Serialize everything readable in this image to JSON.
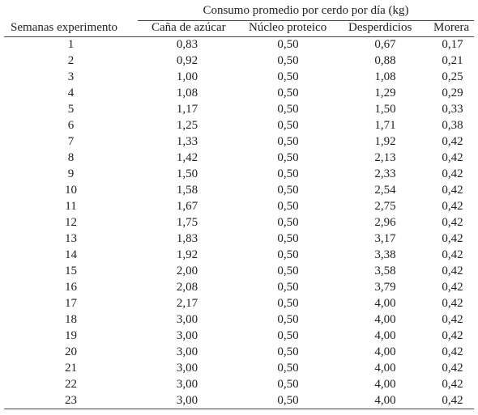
{
  "table": {
    "group_header": "Consumo promedio por cerdo por  día (kg)",
    "columns": [
      "Semanas experimento",
      "Caña de azúcar",
      "Núcleo proteico",
      "Desperdicios",
      "Morera"
    ],
    "rows": [
      [
        "1",
        "0,83",
        "0,50",
        "0,67",
        "0,17"
      ],
      [
        "2",
        "0,92",
        "0,50",
        "0,88",
        "0,21"
      ],
      [
        "3",
        "1,00",
        "0,50",
        "1,08",
        "0,25"
      ],
      [
        "4",
        "1,08",
        "0,50",
        "1,29",
        "0,29"
      ],
      [
        "5",
        "1,17",
        "0,50",
        "1,50",
        "0,33"
      ],
      [
        "6",
        "1,25",
        "0,50",
        "1,71",
        "0,38"
      ],
      [
        "7",
        "1,33",
        "0,50",
        "1,92",
        "0,42"
      ],
      [
        "8",
        "1,42",
        "0,50",
        "2,13",
        "0,42"
      ],
      [
        "9",
        "1,50",
        "0,50",
        "2,33",
        "0,42"
      ],
      [
        "10",
        "1,58",
        "0,50",
        "2,54",
        "0,42"
      ],
      [
        "11",
        "1,67",
        "0,50",
        "2,75",
        "0,42"
      ],
      [
        "12",
        "1,75",
        "0,50",
        "2,96",
        "0,42"
      ],
      [
        "13",
        "1,83",
        "0,50",
        "3,17",
        "0,42"
      ],
      [
        "14",
        "1,92",
        "0,50",
        "3,38",
        "0,42"
      ],
      [
        "15",
        "2,00",
        "0,50",
        "3,58",
        "0,42"
      ],
      [
        "16",
        "2,08",
        "0,50",
        "3,79",
        "0,42"
      ],
      [
        "17",
        "2,17",
        "0,50",
        "4,00",
        "0,42"
      ],
      [
        "18",
        "3,00",
        "0,50",
        "4,00",
        "0,42"
      ],
      [
        "19",
        "3,00",
        "0,50",
        "4,00",
        "0,42"
      ],
      [
        "20",
        "3,00",
        "0,50",
        "4,00",
        "0,42"
      ],
      [
        "21",
        "3,00",
        "0,50",
        "4,00",
        "0,42"
      ],
      [
        "22",
        "3,00",
        "0,50",
        "4,00",
        "0,42"
      ],
      [
        "23",
        "3,00",
        "0,50",
        "4,00",
        "0,42"
      ]
    ]
  }
}
